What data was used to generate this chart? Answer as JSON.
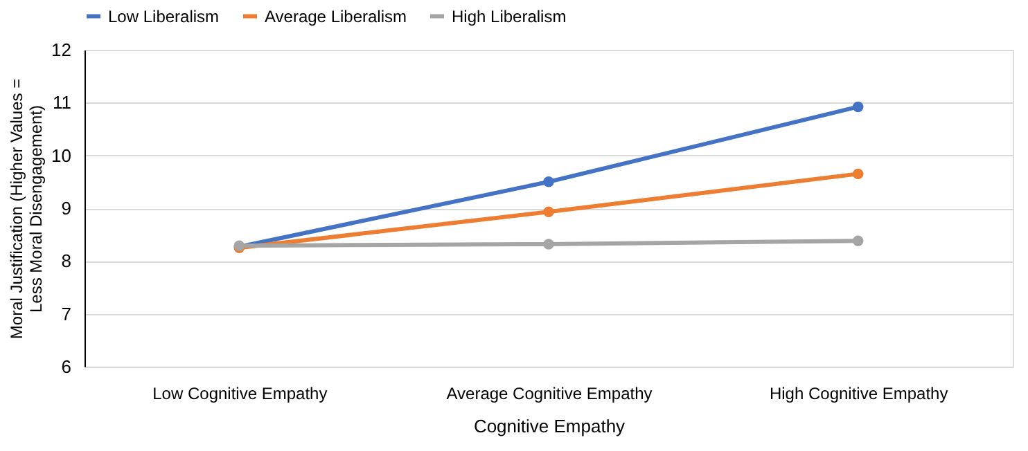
{
  "chart_data": {
    "type": "line",
    "xlabel": "Cognitive Empathy",
    "ylabel": "Moral Justification (Higher Values = Less Moral Disengagement)",
    "categories": [
      "Low Cognitive Empathy",
      "Average Cognitive Empathy",
      "High Cognitive Empathy"
    ],
    "series": [
      {
        "name": "Low Liberalism",
        "color": "#4472c4",
        "values": [
          8.27,
          9.5,
          10.92
        ]
      },
      {
        "name": "Average Liberalism",
        "color": "#ed7d31",
        "values": [
          8.25,
          8.93,
          9.65
        ]
      },
      {
        "name": "High Liberalism",
        "color": "#a5a5a5",
        "values": [
          8.29,
          8.32,
          8.38
        ]
      }
    ],
    "ylim": [
      6,
      12
    ],
    "yticks": [
      6,
      7,
      8,
      9,
      10,
      11,
      12
    ],
    "grid": "y",
    "legend": "top",
    "marker": "circle",
    "line_style": "solid"
  }
}
